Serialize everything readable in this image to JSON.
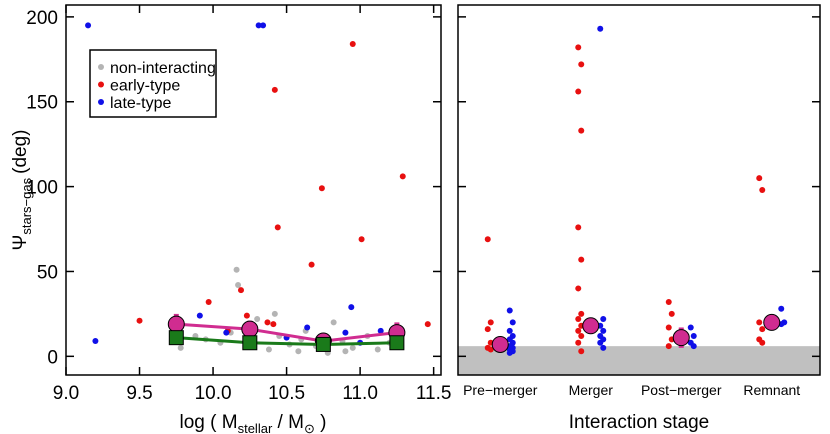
{
  "chart_data": [
    {
      "type": "scatter",
      "ylabel": {
        "symbol": "Ψ",
        "sub": "stars−gas",
        "unit": "(deg)"
      },
      "xlabel": {
        "pre": "log ( M",
        "sub": "stellar",
        "mid": " / M",
        "sub2": "⊙",
        "post": " )"
      },
      "xlim": [
        9.0,
        11.55
      ],
      "ylim": [
        -11,
        207
      ],
      "xticks": [
        {
          "value": 9.0,
          "label": "9.0"
        },
        9.5,
        {
          "value": 10.0,
          "label": "10.0"
        },
        10.5,
        {
          "value": 11.0,
          "label": "11.0"
        },
        11.5
      ],
      "yticks": [
        0,
        50,
        100,
        150,
        200
      ],
      "legend": "upper left",
      "series": [
        {
          "name": "non-interacting",
          "color": "#b4b4b4",
          "x": [
            10.16,
            10.17,
            9.78,
            9.95,
            10.05,
            10.12,
            10.3,
            10.38,
            10.45,
            10.52,
            10.58,
            10.63,
            10.7,
            10.78,
            10.82,
            10.88,
            10.95,
            11.05,
            11.12,
            11.2,
            10.25,
            10.42,
            10.6,
            10.9,
            9.88
          ],
          "values": [
            51,
            42,
            5,
            10,
            8,
            14,
            22,
            4,
            12,
            7,
            3,
            15,
            6,
            2,
            20,
            9,
            5,
            12,
            4,
            8,
            18,
            25,
            10,
            3,
            12
          ]
        },
        {
          "name": "early-type",
          "color": "#e81010",
          "x": [
            10.95,
            10.42,
            11.29,
            10.74,
            11.01,
            10.44,
            10.67,
            10.19,
            9.97,
            9.5,
            11.46,
            10.37,
            10.41,
            10.23,
            10.78,
            11.25,
            10.1
          ],
          "values": [
            184,
            157,
            106,
            99,
            69,
            76,
            54,
            39,
            32,
            21,
            19,
            20,
            19,
            24,
            10,
            12,
            15
          ]
        },
        {
          "name": "late-type",
          "color": "#1010e8",
          "x": [
            9.15,
            10.31,
            10.34,
            9.2,
            9.91,
            10.94,
            10.64,
            10.9,
            11.14,
            10.09,
            11.0,
            10.5
          ],
          "values": [
            195,
            195,
            195,
            9,
            24,
            29,
            17,
            14,
            15,
            14,
            8,
            11
          ]
        }
      ],
      "medians": [
        {
          "color": "#d02c90",
          "x": [
            9.75,
            10.25,
            10.75,
            11.25
          ],
          "values": [
            19,
            16,
            9,
            14
          ],
          "errors": [
            6,
            5,
            3,
            6
          ]
        },
        {
          "color": "#1a7a1a",
          "x": [
            9.75,
            10.25,
            10.75,
            11.25
          ],
          "values": [
            11,
            8,
            7,
            8
          ],
          "errors": [
            3,
            3,
            2,
            3
          ]
        }
      ]
    },
    {
      "type": "strip",
      "xlabel": "Interaction stage",
      "categories": [
        "Pre−merger",
        "Merger",
        "Post−merger",
        "Remnant"
      ],
      "ylim": [
        -11,
        207
      ],
      "yticks": [
        0,
        50,
        100,
        150,
        200
      ],
      "shade_below": 6,
      "shade_color": "#c0c0c0",
      "series": [
        {
          "color": "#e81010",
          "values": [
            [
              69,
              20,
              16,
              8,
              5,
              4
            ],
            [
              182,
              172,
              156,
              133,
              76,
              57,
              40,
              25,
              22,
              18,
              15,
              12,
              8,
              3
            ],
            [
              32,
              25,
              17,
              10,
              6
            ],
            [
              105,
              98,
              20,
              16,
              10,
              8
            ]
          ]
        },
        {
          "color": "#1010e8",
          "values": [
            [
              27,
              20,
              15,
              12,
              10,
              8,
              6,
              5,
              4,
              3,
              2
            ],
            [
              193,
              22,
              18,
              15,
              12,
              10,
              8,
              5
            ],
            [
              17,
              12,
              8,
              6
            ],
            [
              28,
              20,
              19
            ]
          ]
        }
      ],
      "medians": {
        "color": "#d02c90",
        "values": [
          7,
          18,
          11,
          20
        ],
        "errors": [
          2,
          4,
          6,
          2
        ]
      }
    }
  ]
}
